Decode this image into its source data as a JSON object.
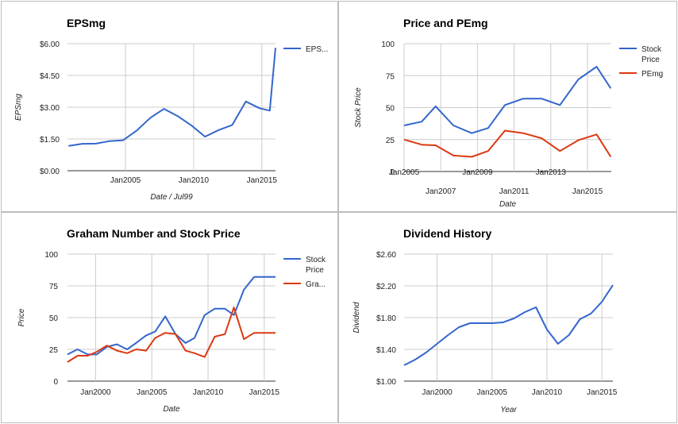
{
  "colors": {
    "blue": "#3366cc",
    "red": "#dc3912"
  },
  "chart_data": [
    {
      "type": "line",
      "title": "EPSmg",
      "xlabel": "Date / Jul99",
      "ylabel": "EPSmg",
      "x_ticks": [
        2005,
        2010,
        2015
      ],
      "x_tick_labels": [
        "Jan2005",
        "Jan2010",
        "Jan2015"
      ],
      "xlim": [
        2000.75,
        2016.0
      ],
      "ylim": [
        0,
        6
      ],
      "y_ticks": [
        0,
        1.5,
        3,
        4.5,
        6
      ],
      "y_tick_labels": [
        "$0.00",
        "$1.50",
        "$3.00",
        "$4.50",
        "$6.00"
      ],
      "grid": true,
      "legend_position": "right",
      "series": [
        {
          "name": "EPS...",
          "color": "#3366cc",
          "x": [
            2000.83,
            2001.83,
            2002.83,
            2003.83,
            2004.83,
            2005.83,
            2006.83,
            2007.83,
            2008.83,
            2009.83,
            2010.83,
            2011.83,
            2012.83,
            2013.83,
            2014.83,
            2015.58,
            2016.0
          ],
          "y": [
            1.17,
            1.27,
            1.28,
            1.4,
            1.44,
            1.9,
            2.5,
            2.92,
            2.58,
            2.14,
            1.61,
            1.92,
            2.16,
            3.27,
            2.95,
            2.84,
            5.8
          ]
        }
      ]
    },
    {
      "type": "line",
      "title": "Price and PEmg",
      "xlabel": "Date",
      "ylabel": "Stock Price",
      "x_ticks": [
        2005,
        2007,
        2009,
        2011,
        2013,
        2015
      ],
      "x_tick_labels": [
        "Jan2005",
        "Jan2007",
        "Jan2009",
        "Jan2011",
        "Jan2013",
        "Jan2015"
      ],
      "xlim": [
        2005,
        2016.3
      ],
      "ylim": [
        0,
        100
      ],
      "y_ticks": [
        0,
        25,
        50,
        75,
        100
      ],
      "y_tick_labels": [
        "0",
        "25",
        "50",
        "75",
        "100"
      ],
      "grid": true,
      "legend_position": "right",
      "series": [
        {
          "name": "Stock Price",
          "color": "#3366cc",
          "x": [
            2005,
            2005.96,
            2006.72,
            2007.69,
            2008.69,
            2009.58,
            2010.5,
            2011.5,
            2012.5,
            2013.5,
            2014.5,
            2015.5,
            2016.27
          ],
          "y": [
            36,
            39,
            51,
            36,
            30,
            34,
            52,
            57,
            57,
            52,
            72,
            82,
            65
          ]
        },
        {
          "name": "PEmg",
          "color": "#dc3912",
          "x": [
            2005,
            2005.96,
            2006.72,
            2007.69,
            2008.69,
            2009.58,
            2010.5,
            2011.5,
            2012.5,
            2013.5,
            2014.5,
            2015.5,
            2016.27
          ],
          "y": [
            25,
            21,
            20.5,
            12.5,
            11.5,
            16,
            32,
            30,
            26,
            16,
            24.5,
            29,
            11.5
          ]
        }
      ]
    },
    {
      "type": "line",
      "title": "Graham Number and Stock Price",
      "xlabel": "Date",
      "ylabel": "Price",
      "x_ticks": [
        2000,
        2005,
        2010,
        2015
      ],
      "x_tick_labels": [
        "Jan2000",
        "Jan2005",
        "Jan2010",
        "Jan2015"
      ],
      "xlim": [
        1997.5,
        2016.0
      ],
      "ylim": [
        0,
        100
      ],
      "y_ticks": [
        0,
        25,
        50,
        75,
        100
      ],
      "y_tick_labels": [
        "0",
        "25",
        "50",
        "75",
        "100"
      ],
      "grid": true,
      "legend_position": "right",
      "series": [
        {
          "name": "Stock Price",
          "color": "#3366cc",
          "x": [
            1997.5,
            1998.4,
            1999.3,
            2000.1,
            2001.0,
            2001.9,
            2002.8,
            2003.6,
            2004.5,
            2005.3,
            2006.2,
            2007.1,
            2008.0,
            2008.8,
            2009.7,
            2010.6,
            2011.5,
            2012.3,
            2013.2,
            2014.1,
            2015.0,
            2016.0
          ],
          "y": [
            21,
            25,
            21,
            21,
            27,
            29,
            25,
            30,
            36,
            39,
            51,
            37,
            30,
            34,
            52,
            57,
            57,
            52,
            72,
            82,
            82,
            82
          ]
        },
        {
          "name": "Gra...",
          "color": "#dc3912",
          "x": [
            1997.5,
            1998.4,
            1999.3,
            2000.1,
            2001.0,
            2001.9,
            2002.8,
            2003.6,
            2004.5,
            2005.3,
            2006.2,
            2007.1,
            2008.0,
            2008.8,
            2009.7,
            2010.6,
            2011.5,
            2012.3,
            2013.2,
            2014.1,
            2015.0,
            2016.0
          ],
          "y": [
            15,
            20,
            20,
            23,
            28,
            24,
            22,
            25,
            24,
            34,
            38,
            37,
            24,
            22,
            19,
            35,
            37,
            58,
            33,
            38,
            38,
            38
          ]
        }
      ]
    },
    {
      "type": "line",
      "title": "Dividend History",
      "xlabel": "Year",
      "ylabel": "Dividend",
      "x_ticks": [
        2000,
        2005,
        2010,
        2015
      ],
      "x_tick_labels": [
        "Jan2000",
        "Jan2005",
        "Jan2010",
        "Jan2015"
      ],
      "xlim": [
        1997.0,
        2016.0
      ],
      "ylim": [
        1.0,
        2.6
      ],
      "y_ticks": [
        1.0,
        1.4,
        1.8,
        2.2,
        2.6
      ],
      "y_tick_labels": [
        "$1.00",
        "$1.40",
        "$1.80",
        "$2.20",
        "$2.60"
      ],
      "grid": true,
      "legend_position": "none",
      "series": [
        {
          "name": "",
          "color": "#3366cc",
          "x": [
            1997.0,
            1998.0,
            1999.0,
            2000.0,
            2001.0,
            2002.0,
            2003.0,
            2004.0,
            2005.0,
            2006.0,
            2007.0,
            2008.0,
            2009.0,
            2010.0,
            2011.0,
            2012.0,
            2013.0,
            2014.0,
            2015.0,
            2016.0
          ],
          "y": [
            1.2,
            1.27,
            1.36,
            1.47,
            1.58,
            1.68,
            1.73,
            1.73,
            1.73,
            1.74,
            1.79,
            1.87,
            1.93,
            1.65,
            1.47,
            1.58,
            1.78,
            1.85,
            2.0,
            2.21
          ]
        }
      ]
    }
  ]
}
